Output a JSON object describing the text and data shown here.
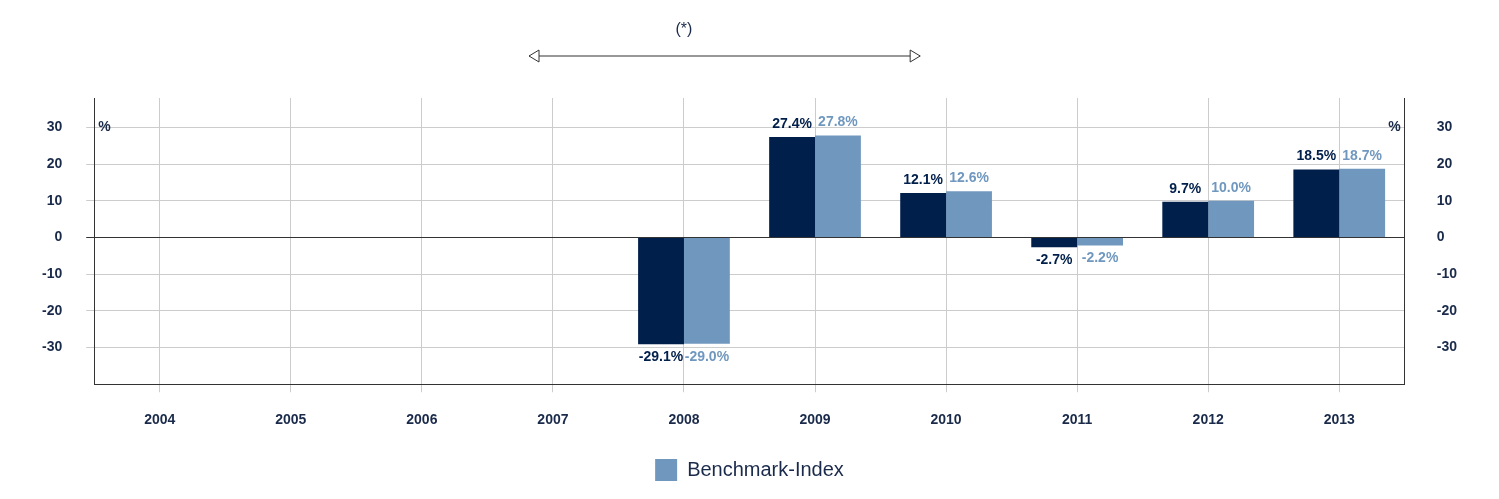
{
  "chart_data": {
    "type": "bar",
    "annotations": [
      "(*)"
    ],
    "categories": [
      "2004",
      "2005",
      "2006",
      "2007",
      "2008",
      "2009",
      "2010",
      "2011",
      "2012",
      "2013"
    ],
    "series": [
      {
        "color": "#001f4b",
        "values": [
          null,
          null,
          null,
          null,
          -29.1,
          27.4,
          12.1,
          -2.7,
          9.7,
          18.5
        ],
        "value_labels": [
          null,
          null,
          null,
          null,
          "-29.1%",
          "27.4%",
          "12.1%",
          "-2.7%",
          "9.7%",
          "18.5%"
        ]
      },
      {
        "name": "Benchmark-Index",
        "color": "#7098bf",
        "values": [
          null,
          null,
          null,
          null,
          -29.0,
          27.8,
          12.6,
          -2.2,
          10.0,
          18.7
        ],
        "value_labels": [
          null,
          null,
          null,
          null,
          "-29.0%",
          "27.8%",
          "12.6%",
          "-2.2%",
          "10.0%",
          "18.7%"
        ]
      }
    ],
    "ylabel": "%",
    "y2label": "%",
    "ylim": [
      -40,
      38
    ],
    "yticks": [
      -30,
      -20,
      -10,
      0,
      10,
      20,
      30
    ],
    "y2lim": [
      -40,
      38
    ],
    "y2ticks": [
      -30,
      -20,
      -10,
      0,
      10,
      20,
      30
    ],
    "grid": true,
    "legend": "bottom"
  }
}
